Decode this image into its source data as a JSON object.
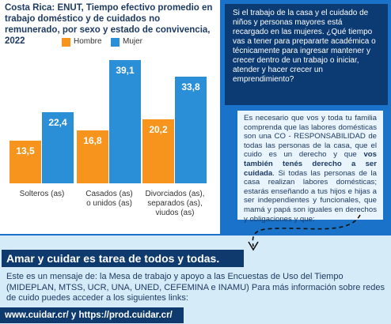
{
  "chart_data": {
    "type": "bar",
    "title": "Costa Rica: ENUT, Tiempo efectivo promedio en trabajo doméstico y de cuidados no remunerado, por sexo y estado de convivencia, 2022",
    "categories": [
      "Solteros (as)",
      "Casados (as)\no unidos (as)",
      "Divorciados (as),\nseparados (as),\nviudos (as)"
    ],
    "series": [
      {
        "name": "Hombre",
        "color": "#f7941d",
        "values": [
          13.5,
          16.8,
          20.2
        ],
        "value_labels": [
          "13,5",
          "16,8",
          "20,2"
        ]
      },
      {
        "name": "Mujer",
        "color": "#2b8fd8",
        "values": [
          22.4,
          39.1,
          33.8
        ],
        "value_labels": [
          "22,4",
          "39,1",
          "33,8"
        ]
      }
    ]
  },
  "callout": {
    "text": "Si el trabajo de la casa y el cuidado de niños y personas mayores está recargado en las mujeres. ¿Qué tiempo vas a tener para prepararte académica o técnicamente para ingresar mantener y crecer dentro de un trabajo o iniciar, atender y hacer crecer un emprendimiento?"
  },
  "note": {
    "segments": [
      {
        "text": "Es necesario que vos y toda tu familia comprenda que las labores domésticas son una CO - RESPONSABILIDAD de todas las personas de la casa, que el cuido es un derecho y que ",
        "bold": false
      },
      {
        "text": "vos también tenés derecho a ser cuidada",
        "bold": true
      },
      {
        "text": ". Si todas las personas de la casa realizan labores domésticas; estarás enseñando a tus hijos e hijas a ser independientes y funcionales, que mamá y papá son iguales en derechos y obligaciones y que:",
        "bold": false
      }
    ]
  },
  "footer": {
    "heading": "Amar y cuidar es tarea de todos y todas.",
    "text": "Este es un mensaje de: la Mesa de trabajo y apoyo a las Encuestas de Uso del Tiempo (MIDEPLAN, MTSS, UCR, UNA, UNED, CEFEMINA e INAMU) Para más información sobre redes de cuido puedes acceder a los siguientes links:",
    "links": "www.cuidar.cr/ y https://prod.cuidar.cr/"
  }
}
